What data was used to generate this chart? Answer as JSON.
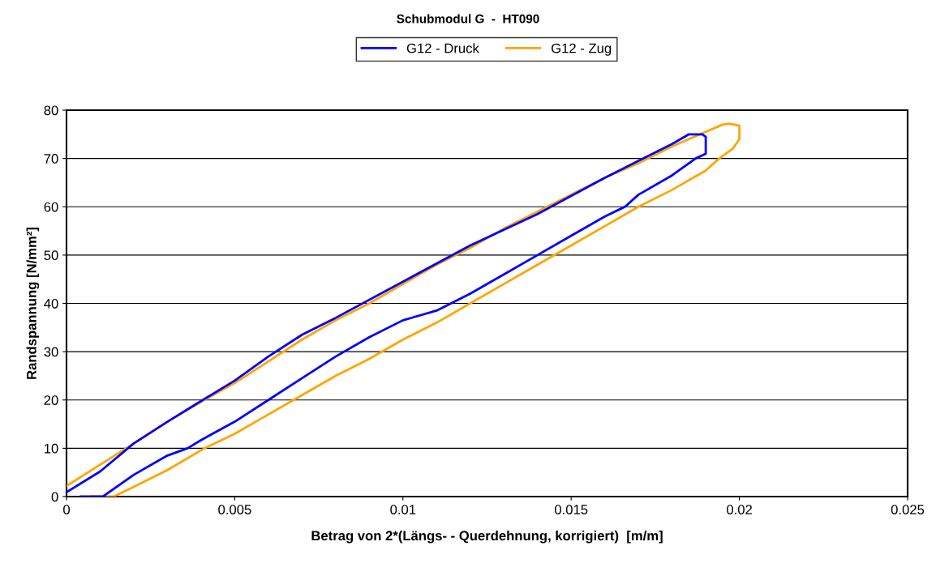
{
  "chart_data": {
    "type": "line",
    "title": "Schubmodul G  -  HT090",
    "xlabel": "Betrag von 2*(Längs- - Querdehnung, korrigiert)  [m/m]",
    "ylabel": "Randspannung [N/mm²]",
    "series": [
      {
        "name": "G12 - Druck",
        "color": "#0000ff",
        "x": [
          0.00043,
          0.00108,
          0.002,
          0.003,
          0.0036,
          0.004,
          0.005,
          0.006,
          0.007,
          0.008,
          0.009,
          0.01,
          0.011,
          0.012,
          0.013,
          0.014,
          0.015,
          0.016,
          0.0166,
          0.017,
          0.018,
          0.0187,
          0.019,
          0.019,
          0.0189,
          0.0185,
          0.018,
          0.017,
          0.016,
          0.014,
          0.012,
          0.01,
          0.008,
          0.007,
          0.006,
          0.005,
          0.004,
          0.003,
          0.002,
          0.001,
          0.0
        ],
        "values": [
          0,
          0,
          4.5,
          8.5,
          10,
          11.7,
          15.5,
          20,
          24.5,
          29,
          33,
          36.5,
          38.5,
          42,
          46,
          50,
          54,
          58,
          60,
          62.5,
          66.5,
          70,
          71,
          74.5,
          75,
          75,
          73,
          69.5,
          66,
          58.5,
          52,
          44.5,
          37,
          33.5,
          29,
          24,
          19.8,
          15.5,
          11,
          5.2,
          0.9
        ]
      },
      {
        "name": "G12 - Zug",
        "color": "#ffa500",
        "x": [
          0.00075,
          0.0014,
          0.002,
          0.003,
          0.0041,
          0.005,
          0.006,
          0.007,
          0.008,
          0.009,
          0.01,
          0.011,
          0.012,
          0.013,
          0.014,
          0.015,
          0.016,
          0.017,
          0.018,
          0.019,
          0.0194,
          0.0198,
          0.02,
          0.02,
          0.0197,
          0.0195,
          0.019,
          0.018,
          0.017,
          0.016,
          0.015,
          0.014,
          0.013,
          0.012,
          0.011,
          0.01,
          0.009,
          0.008,
          0.007,
          0.006,
          0.005,
          0.0041,
          0.003,
          0.002,
          0.001,
          0.0
        ],
        "values": [
          0,
          0,
          2,
          5.5,
          10,
          13,
          17,
          21,
          25,
          28.5,
          32.5,
          36,
          40,
          44,
          48,
          52,
          56,
          60,
          63.5,
          67.5,
          70,
          72,
          74,
          76.8,
          77.2,
          77,
          75.5,
          72.5,
          69,
          66,
          62.5,
          59,
          55.5,
          51.5,
          48,
          44,
          40,
          36.5,
          32.5,
          28,
          23.5,
          20,
          15.5,
          11,
          6.6,
          2.2
        ]
      }
    ],
    "xlim": [
      0,
      0.025
    ],
    "xticks": [
      0,
      0.005,
      0.01,
      0.015,
      0.02,
      0.025
    ],
    "ylim": [
      0,
      80
    ],
    "yticks": [
      0,
      10,
      20,
      30,
      40,
      50,
      60,
      70,
      80
    ],
    "grid": "y",
    "legend": "top",
    "marker": "none",
    "line_style": "solid"
  }
}
